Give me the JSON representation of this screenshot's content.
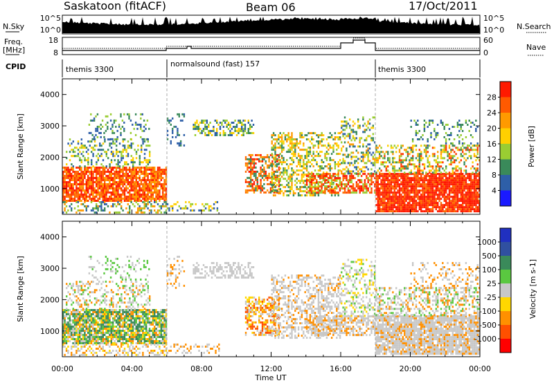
{
  "header": {
    "station": "Saskatoon (fitACF)",
    "beam": "Beam 06",
    "date": "17/Oct/2011"
  },
  "nsky_panel": {
    "left_label": "N.Sky",
    "right_label": "N.Search",
    "tick_top": "10^5",
    "tick_bottom": "10^0",
    "right_tick_top": "10^5",
    "right_tick_bottom": "10^0"
  },
  "freq_panel": {
    "left_label_line1": "Freq.",
    "left_label_line2": "[MHz]",
    "right_label": "Nave",
    "left_ticks": [
      "18",
      "8"
    ],
    "right_ticks": [
      "60",
      "0"
    ]
  },
  "cpid": {
    "label": "CPID",
    "segments": [
      {
        "start_h": 0,
        "end_h": 6,
        "text": "themis 3300"
      },
      {
        "start_h": 6,
        "end_h": 18,
        "text": "normalsound (fast) 157"
      },
      {
        "start_h": 18,
        "end_h": 24,
        "text": "themis 3300"
      }
    ]
  },
  "chart_data": [
    {
      "type": "heatmap",
      "title": "Power",
      "ylabel": "Slant Range [km]",
      "ylim": [
        180,
        4500
      ],
      "yticks": [
        "1000",
        "2000",
        "3000",
        "4000"
      ],
      "colorbar": {
        "label": "Power [dB]",
        "tick_labels": [
          "4",
          "8",
          "12",
          "16",
          "20",
          "24",
          "28"
        ],
        "colors": [
          "#1a1aff",
          "#2e5fa8",
          "#3a8a5a",
          "#9acd32",
          "#ffd700",
          "#ff8c00",
          "#ff2000"
        ]
      }
    },
    {
      "type": "heatmap",
      "title": "Velocity",
      "ylabel": "Slant Range [km]",
      "ylim": [
        180,
        4500
      ],
      "yticks": [
        "1000",
        "2000",
        "3000",
        "4000"
      ],
      "xlabel": "Time UT",
      "xticks": [
        "00:00",
        "04:00",
        "08:00",
        "12:00",
        "16:00",
        "20:00",
        "00:00"
      ],
      "colorbar": {
        "label": "Velocity [m s-1]",
        "tick_labels": [
          "1000",
          "500",
          "100",
          "25",
          "-25",
          "-100",
          "-500",
          "-1000"
        ],
        "colors": [
          "#2030c0",
          "#3a8a5a",
          "#5ac840",
          "#c8c8c8",
          "#ffd700",
          "#ff8c00",
          "#ff4000",
          "#ff0000"
        ]
      }
    }
  ]
}
